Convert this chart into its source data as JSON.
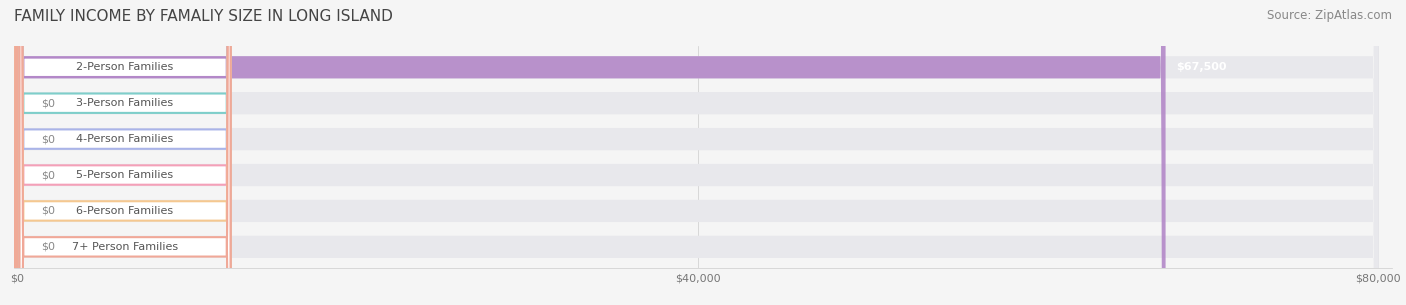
{
  "title": "FAMILY INCOME BY FAMALIY SIZE IN LONG ISLAND",
  "source": "Source: ZipAtlas.com",
  "categories": [
    "2-Person Families",
    "3-Person Families",
    "4-Person Families",
    "5-Person Families",
    "6-Person Families",
    "7+ Person Families"
  ],
  "values": [
    67500,
    0,
    0,
    0,
    0,
    0
  ],
  "bar_colors": [
    "#b388c8",
    "#7ececa",
    "#aab4e8",
    "#f4a0b8",
    "#f5c890",
    "#f0a898"
  ],
  "value_labels": [
    "$67,500",
    "$0",
    "$0",
    "$0",
    "$0",
    "$0"
  ],
  "xlim": [
    0,
    80000
  ],
  "xticks": [
    0,
    40000,
    80000
  ],
  "xtick_labels": [
    "$0",
    "$40,000",
    "$80,000"
  ],
  "background_color": "#f5f5f5",
  "bar_bg_color": "#e8e8ec",
  "title_fontsize": 11,
  "source_fontsize": 8.5,
  "label_fontsize": 8,
  "figsize": [
    14.06,
    3.05
  ],
  "dpi": 100
}
